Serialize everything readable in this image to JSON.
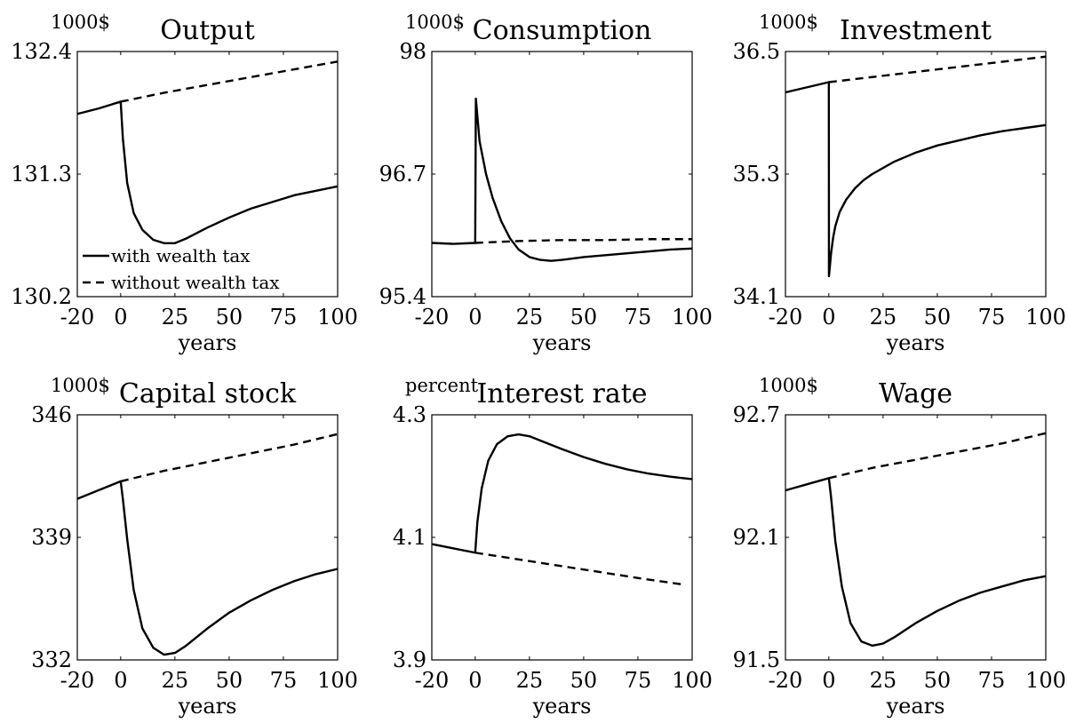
{
  "chart_data": [
    {
      "type": "line",
      "title": "Output",
      "unit_label": "1000$",
      "xlabel": "years",
      "xlim": [
        -20,
        100
      ],
      "ylim": [
        130.2,
        132.4
      ],
      "xticks": [
        "-20",
        "0",
        "25",
        "50",
        "75",
        "100"
      ],
      "yticks": [
        "130.2",
        "131.3",
        "132.4"
      ],
      "legend": {
        "placement": "bottom-left",
        "entries": [
          {
            "label": "with wealth tax",
            "style": "solid"
          },
          {
            "label": "without wealth tax",
            "style": "dashed"
          }
        ]
      },
      "series": [
        {
          "style": "solid",
          "points": [
            [
              -20,
              131.84
            ],
            [
              -10,
              131.89
            ],
            [
              0,
              131.95
            ],
            [
              1,
              131.62
            ],
            [
              3,
              131.22
            ],
            [
              6,
              130.95
            ],
            [
              10,
              130.8
            ],
            [
              15,
              130.71
            ],
            [
              20,
              130.68
            ],
            [
              25,
              130.68
            ],
            [
              30,
              130.72
            ],
            [
              40,
              130.82
            ],
            [
              50,
              130.91
            ],
            [
              60,
              130.99
            ],
            [
              70,
              131.05
            ],
            [
              80,
              131.11
            ],
            [
              90,
              131.15
            ],
            [
              100,
              131.19
            ]
          ]
        },
        {
          "style": "dashed",
          "points": [
            [
              0,
              131.95
            ],
            [
              20,
              132.03
            ],
            [
              40,
              132.1
            ],
            [
              60,
              132.17
            ],
            [
              80,
              132.24
            ],
            [
              100,
              132.31
            ]
          ]
        }
      ]
    },
    {
      "type": "line",
      "title": "Consumption",
      "unit_label": "1000$",
      "xlabel": "years",
      "xlim": [
        -20,
        100
      ],
      "ylim": [
        95.4,
        98
      ],
      "xticks": [
        "-20",
        "0",
        "25",
        "50",
        "75",
        "100"
      ],
      "yticks": [
        "95.4",
        "96.7",
        "98"
      ],
      "series": [
        {
          "style": "solid",
          "points": [
            [
              -20,
              95.97
            ],
            [
              -10,
              95.96
            ],
            [
              0,
              95.97
            ],
            [
              0.3,
              97.5
            ],
            [
              2,
              97.05
            ],
            [
              5,
              96.7
            ],
            [
              8,
              96.45
            ],
            [
              12,
              96.2
            ],
            [
              16,
              96.02
            ],
            [
              20,
              95.9
            ],
            [
              25,
              95.82
            ],
            [
              30,
              95.79
            ],
            [
              35,
              95.78
            ],
            [
              40,
              95.79
            ],
            [
              50,
              95.82
            ],
            [
              60,
              95.84
            ],
            [
              70,
              95.86
            ],
            [
              80,
              95.88
            ],
            [
              90,
              95.9
            ],
            [
              100,
              95.91
            ]
          ]
        },
        {
          "style": "dashed",
          "points": [
            [
              0,
              95.97
            ],
            [
              20,
              95.99
            ],
            [
              40,
              96.0
            ],
            [
              60,
              96.0
            ],
            [
              80,
              96.01
            ],
            [
              100,
              96.01
            ]
          ]
        }
      ]
    },
    {
      "type": "line",
      "title": "Investment",
      "unit_label": "1000$",
      "xlabel": "years",
      "xlim": [
        -20,
        100
      ],
      "ylim": [
        34.1,
        36.5
      ],
      "xticks": [
        "-20",
        "0",
        "25",
        "50",
        "75",
        "100"
      ],
      "yticks": [
        "34.1",
        "35.3",
        "36.5"
      ],
      "series": [
        {
          "style": "solid",
          "points": [
            [
              -20,
              36.1
            ],
            [
              -10,
              36.15
            ],
            [
              0,
              36.2
            ],
            [
              0.05,
              34.3
            ],
            [
              0.5,
              34.4
            ],
            [
              1,
              34.52
            ],
            [
              2,
              34.68
            ],
            [
              3,
              34.79
            ],
            [
              5,
              34.93
            ],
            [
              8,
              35.05
            ],
            [
              12,
              35.16
            ],
            [
              16,
              35.24
            ],
            [
              20,
              35.3
            ],
            [
              30,
              35.42
            ],
            [
              40,
              35.51
            ],
            [
              50,
              35.58
            ],
            [
              60,
              35.63
            ],
            [
              70,
              35.68
            ],
            [
              80,
              35.72
            ],
            [
              90,
              35.75
            ],
            [
              100,
              35.78
            ]
          ]
        },
        {
          "style": "dashed",
          "points": [
            [
              0,
              36.2
            ],
            [
              20,
              36.25
            ],
            [
              40,
              36.3
            ],
            [
              60,
              36.35
            ],
            [
              80,
              36.4
            ],
            [
              100,
              36.45
            ]
          ]
        }
      ]
    },
    {
      "type": "line",
      "title": "Capital stock",
      "unit_label": "1000$",
      "xlabel": "years",
      "xlim": [
        -20,
        100
      ],
      "ylim": [
        332,
        346
      ],
      "xticks": [
        "-20",
        "0",
        "25",
        "50",
        "75",
        "100"
      ],
      "yticks": [
        "332",
        "339",
        "346"
      ],
      "series": [
        {
          "style": "solid",
          "points": [
            [
              -20,
              341.2
            ],
            [
              -10,
              341.7
            ],
            [
              0,
              342.2
            ],
            [
              1,
              341.2
            ],
            [
              3,
              338.9
            ],
            [
              6,
              336.0
            ],
            [
              10,
              333.8
            ],
            [
              15,
              332.7
            ],
            [
              20,
              332.3
            ],
            [
              25,
              332.4
            ],
            [
              30,
              332.8
            ],
            [
              40,
              333.8
            ],
            [
              50,
              334.7
            ],
            [
              60,
              335.4
            ],
            [
              70,
              336.0
            ],
            [
              80,
              336.5
            ],
            [
              90,
              336.9
            ],
            [
              100,
              337.2
            ]
          ]
        },
        {
          "style": "dashed",
          "points": [
            [
              0,
              342.2
            ],
            [
              20,
              342.8
            ],
            [
              40,
              343.3
            ],
            [
              60,
              343.8
            ],
            [
              80,
              344.3
            ],
            [
              100,
              344.9
            ]
          ]
        }
      ]
    },
    {
      "type": "line",
      "title": "Interest rate",
      "unit_label": "percent",
      "xlabel": "years",
      "xlim": [
        -20,
        100
      ],
      "ylim": [
        3.9,
        4.3
      ],
      "xticks": [
        "-20",
        "0",
        "25",
        "50",
        "75",
        "100"
      ],
      "yticks": [
        "3.9",
        "4.1",
        "4.3"
      ],
      "series": [
        {
          "style": "solid",
          "points": [
            [
              -20,
              4.089
            ],
            [
              -10,
              4.082
            ],
            [
              0,
              4.075
            ],
            [
              1,
              4.125
            ],
            [
              3,
              4.18
            ],
            [
              6,
              4.225
            ],
            [
              10,
              4.252
            ],
            [
              15,
              4.265
            ],
            [
              20,
              4.268
            ],
            [
              25,
              4.265
            ],
            [
              30,
              4.258
            ],
            [
              40,
              4.244
            ],
            [
              50,
              4.231
            ],
            [
              60,
              4.22
            ],
            [
              70,
              4.211
            ],
            [
              80,
              4.204
            ],
            [
              90,
              4.199
            ],
            [
              100,
              4.195
            ]
          ]
        },
        {
          "style": "dashed",
          "points": [
            [
              0,
              4.075
            ],
            [
              20,
              4.064
            ],
            [
              40,
              4.053
            ],
            [
              60,
              4.042
            ],
            [
              80,
              4.031
            ],
            [
              96,
              4.023
            ]
          ]
        }
      ]
    },
    {
      "type": "line",
      "title": "Wage",
      "unit_label": "1000$",
      "xlabel": "years",
      "xlim": [
        -20,
        100
      ],
      "ylim": [
        91.5,
        92.7
      ],
      "xticks": [
        "-20",
        "0",
        "25",
        "50",
        "75",
        "100"
      ],
      "yticks": [
        "91.5",
        "92.1",
        "92.7"
      ],
      "series": [
        {
          "style": "solid",
          "points": [
            [
              -20,
              92.33
            ],
            [
              -10,
              92.36
            ],
            [
              0,
              92.39
            ],
            [
              1,
              92.3
            ],
            [
              3,
              92.08
            ],
            [
              6,
              91.86
            ],
            [
              10,
              91.68
            ],
            [
              15,
              91.59
            ],
            [
              20,
              91.57
            ],
            [
              25,
              91.58
            ],
            [
              30,
              91.61
            ],
            [
              40,
              91.68
            ],
            [
              50,
              91.74
            ],
            [
              60,
              91.79
            ],
            [
              70,
              91.83
            ],
            [
              80,
              91.86
            ],
            [
              90,
              91.89
            ],
            [
              100,
              91.91
            ]
          ]
        },
        {
          "style": "dashed",
          "points": [
            [
              0,
              92.39
            ],
            [
              20,
              92.44
            ],
            [
              40,
              92.48
            ],
            [
              60,
              92.52
            ],
            [
              80,
              92.56
            ],
            [
              100,
              92.61
            ]
          ]
        }
      ]
    }
  ]
}
